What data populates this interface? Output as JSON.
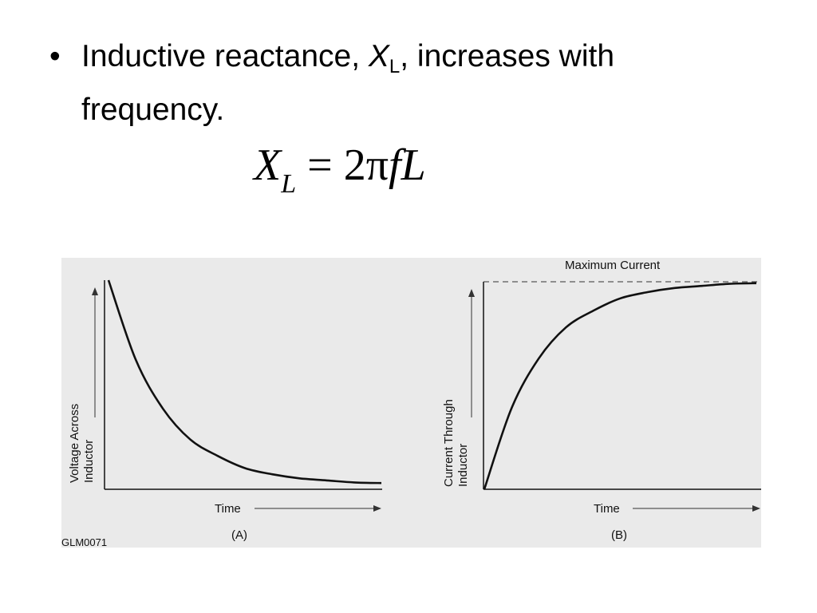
{
  "slide": {
    "bullet_symbol": "•",
    "bullet_prefix": "Inductive reactance, ",
    "bullet_var": "X",
    "bullet_sub": "L",
    "bullet_suffix": ", increases with frequency.",
    "formula": {
      "lhs_var": "X",
      "lhs_sub": "L",
      "equals": "=",
      "rhs": "2π",
      "rhs_f": "f",
      "rhs_L": "L"
    }
  },
  "figure": {
    "code": "GLM0071",
    "background_color": "#eaeaea",
    "line_color": "#111111"
  },
  "chart_data": [
    {
      "type": "line",
      "panel_label": "(A)",
      "xlabel": "Time",
      "ylabel_line1": "Voltage Across",
      "ylabel_line2": "Inductor",
      "shape": "exponential decay",
      "x": [
        0,
        0.5,
        1,
        1.5,
        2,
        2.5,
        3,
        3.5,
        4,
        4.5,
        5
      ],
      "y": [
        1.0,
        0.61,
        0.37,
        0.22,
        0.14,
        0.08,
        0.05,
        0.03,
        0.02,
        0.01,
        0.007
      ],
      "xlim": [
        0,
        5
      ],
      "ylim": [
        0,
        1.0
      ]
    },
    {
      "type": "line",
      "panel_label": "(B)",
      "xlabel": "Time",
      "ylabel_line1": "Current Through",
      "ylabel_line2": "Inductor",
      "shape": "exponential rise",
      "annotation": "Maximum Current",
      "asymptote": 1.0,
      "x": [
        0,
        0.5,
        1,
        1.5,
        2,
        2.5,
        3,
        3.5,
        4,
        4.5,
        5
      ],
      "y": [
        0.0,
        0.39,
        0.63,
        0.78,
        0.86,
        0.92,
        0.95,
        0.97,
        0.98,
        0.99,
        0.993
      ],
      "xlim": [
        0,
        5
      ],
      "ylim": [
        0,
        1.0
      ]
    }
  ]
}
